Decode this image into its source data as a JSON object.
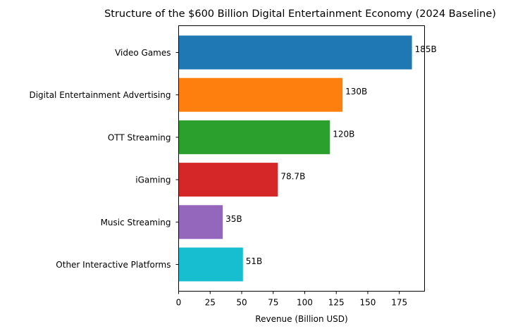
{
  "chart_data": {
    "type": "bar",
    "orientation": "horizontal",
    "title": "Structure of the $600 Billion Digital Entertainment Economy (2024 Baseline)",
    "xlabel": "Revenue (Billion USD)",
    "ylabel": "",
    "xlim": [
      0,
      195
    ],
    "xticks": [
      0,
      25,
      50,
      75,
      100,
      125,
      150,
      175
    ],
    "grid": false,
    "categories": [
      "Video Games",
      "Digital Entertainment Advertising",
      "OTT Streaming",
      "iGaming",
      "Music Streaming",
      "Other Interactive Platforms"
    ],
    "values": [
      185,
      130,
      120,
      78.7,
      35,
      51
    ],
    "data_labels": [
      "185B",
      "130B",
      "120B",
      "78.7B",
      "35B",
      "51B"
    ],
    "colors": [
      "#1f77b4",
      "#ff7f0e",
      "#2ca02c",
      "#d62728",
      "#9467bd",
      "#17becf"
    ]
  }
}
